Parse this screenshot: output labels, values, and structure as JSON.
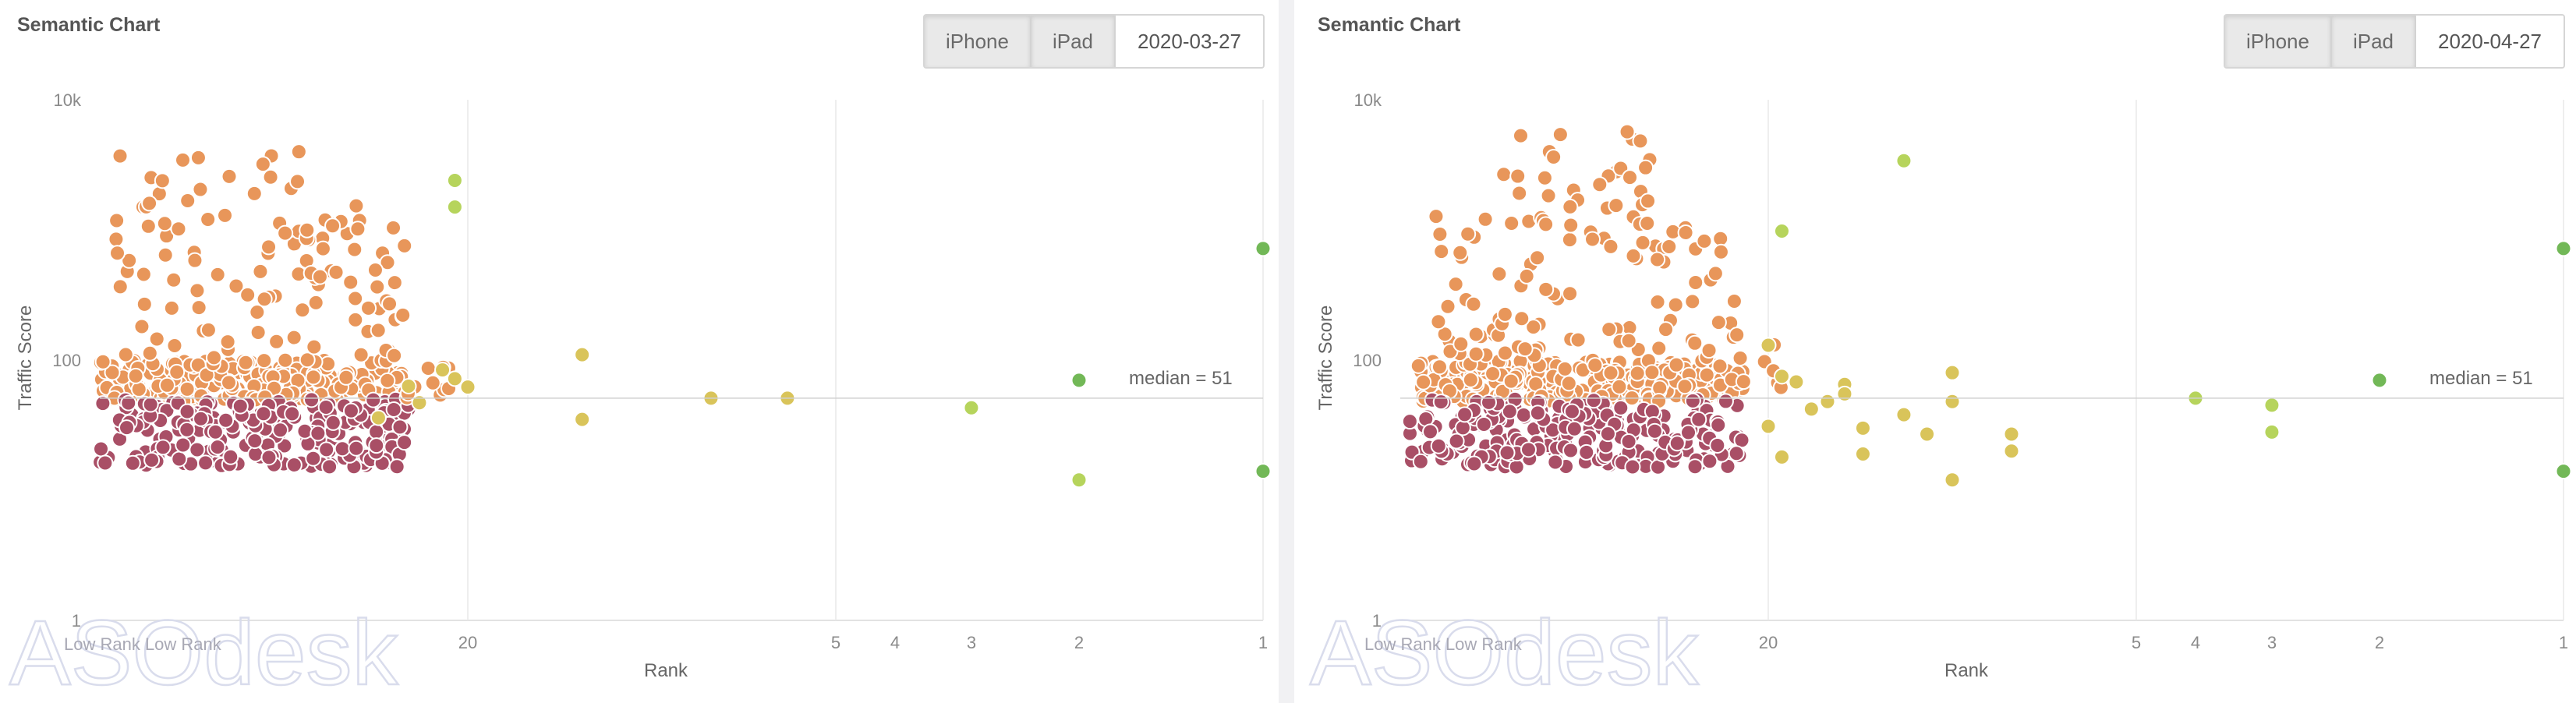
{
  "chart_data": [
    {
      "type": "scatter",
      "title": "Semantic Chart",
      "xlabel": "Rank",
      "ylabel": "Traffic Score",
      "x_scale": "log-reversed",
      "y_scale": "log",
      "xlim": [
        80,
        1
      ],
      "ylim": [
        1,
        10000
      ],
      "x_ticks": [
        20,
        5,
        4,
        3,
        2,
        1
      ],
      "y_ticks": [
        "1",
        "100",
        "10k"
      ],
      "median": 51,
      "median_label": "median = 51",
      "device_options": [
        "iPhone",
        "iPad"
      ],
      "date": "2020-03-27",
      "corner_label": "Low Rank Low Rank",
      "watermark": "ASOdesk",
      "colors": {
        "high": "#e8965a",
        "low": "#a94f66",
        "mid": "#d9c45a",
        "good": "#b6d45c",
        "top": "#72b857"
      },
      "points": [
        [
          20,
          62,
          "mid"
        ],
        [
          22,
          84,
          "mid"
        ],
        [
          21,
          72,
          "mid"
        ],
        [
          25,
          63,
          "mid"
        ],
        [
          24,
          47,
          "mid"
        ],
        [
          28,
          36,
          "mid"
        ],
        [
          13,
          110,
          "mid"
        ],
        [
          13,
          35,
          "mid"
        ],
        [
          8,
          51,
          "mid"
        ],
        [
          6,
          51,
          "mid"
        ],
        [
          3,
          43,
          "good"
        ],
        [
          2,
          12,
          "good"
        ],
        [
          2,
          70,
          "top"
        ],
        [
          1,
          720,
          "top"
        ],
        [
          1,
          14,
          "top"
        ],
        [
          21,
          2400,
          "good"
        ],
        [
          21,
          1500,
          "good"
        ]
      ],
      "clusters": [
        {
          "x": [
            25,
            80
          ],
          "y": [
            48,
            100
          ],
          "n": 260,
          "color": "high",
          "seed": 11
        },
        {
          "x": [
            25,
            80
          ],
          "y": [
            15,
            50
          ],
          "n": 230,
          "color": "low",
          "seed": 23
        },
        {
          "x": [
            25,
            80
          ],
          "y": [
            100,
            1200
          ],
          "n": 95,
          "color": "high",
          "seed": 37
        },
        {
          "x": [
            30,
            75
          ],
          "y": [
            1200,
            4000
          ],
          "n": 22,
          "color": "high",
          "seed": 41
        },
        {
          "x": [
            21,
            26
          ],
          "y": [
            50,
            120
          ],
          "n": 10,
          "color": "high",
          "seed": 53
        }
      ]
    },
    {
      "type": "scatter",
      "title": "Semantic Chart",
      "xlabel": "Rank",
      "ylabel": "Traffic Score",
      "x_scale": "log-reversed",
      "y_scale": "log",
      "xlim": [
        80,
        1
      ],
      "ylim": [
        1,
        10000
      ],
      "x_ticks": [
        20,
        5,
        4,
        3,
        2,
        1
      ],
      "y_ticks": [
        "1",
        "100",
        "10k"
      ],
      "median": 51,
      "median_label": "median = 51",
      "device_options": [
        "iPhone",
        "iPad"
      ],
      "date": "2020-04-27",
      "corner_label": "Low Rank Low Rank",
      "watermark": "ASOdesk",
      "colors": {
        "high": "#e8965a",
        "low": "#a94f66",
        "mid": "#d9c45a",
        "good": "#b6d45c",
        "top": "#72b857"
      },
      "points": [
        [
          20,
          130,
          "mid"
        ],
        [
          20,
          31,
          "mid"
        ],
        [
          19,
          75,
          "mid"
        ],
        [
          18,
          68,
          "mid"
        ],
        [
          19,
          18,
          "mid"
        ],
        [
          17,
          42,
          "mid"
        ],
        [
          16,
          48,
          "mid"
        ],
        [
          15,
          65,
          "mid"
        ],
        [
          15,
          55,
          "mid"
        ],
        [
          14,
          30,
          "mid"
        ],
        [
          14,
          19,
          "mid"
        ],
        [
          12,
          38,
          "mid"
        ],
        [
          11,
          27,
          "mid"
        ],
        [
          10,
          80,
          "mid"
        ],
        [
          10,
          48,
          "mid"
        ],
        [
          10,
          12,
          "mid"
        ],
        [
          8,
          27,
          "mid"
        ],
        [
          8,
          20,
          "mid"
        ],
        [
          4,
          51,
          "good"
        ],
        [
          3,
          45,
          "good"
        ],
        [
          3,
          28,
          "good"
        ],
        [
          12,
          3400,
          "good"
        ],
        [
          19,
          980,
          "good"
        ],
        [
          2,
          70,
          "top"
        ],
        [
          1,
          720,
          "top"
        ],
        [
          1,
          14,
          "top"
        ]
      ],
      "clusters": [
        {
          "x": [
            22,
            75
          ],
          "y": [
            48,
            100
          ],
          "n": 270,
          "color": "high",
          "seed": 71
        },
        {
          "x": [
            22,
            78
          ],
          "y": [
            15,
            50
          ],
          "n": 240,
          "color": "low",
          "seed": 83
        },
        {
          "x": [
            22,
            70
          ],
          "y": [
            100,
            1500
          ],
          "n": 105,
          "color": "high",
          "seed": 97
        },
        {
          "x": [
            30,
            55
          ],
          "y": [
            1500,
            6200
          ],
          "n": 26,
          "color": "high",
          "seed": 101
        },
        {
          "x": [
            19,
            24
          ],
          "y": [
            60,
            150
          ],
          "n": 12,
          "color": "high",
          "seed": 113
        }
      ]
    }
  ]
}
